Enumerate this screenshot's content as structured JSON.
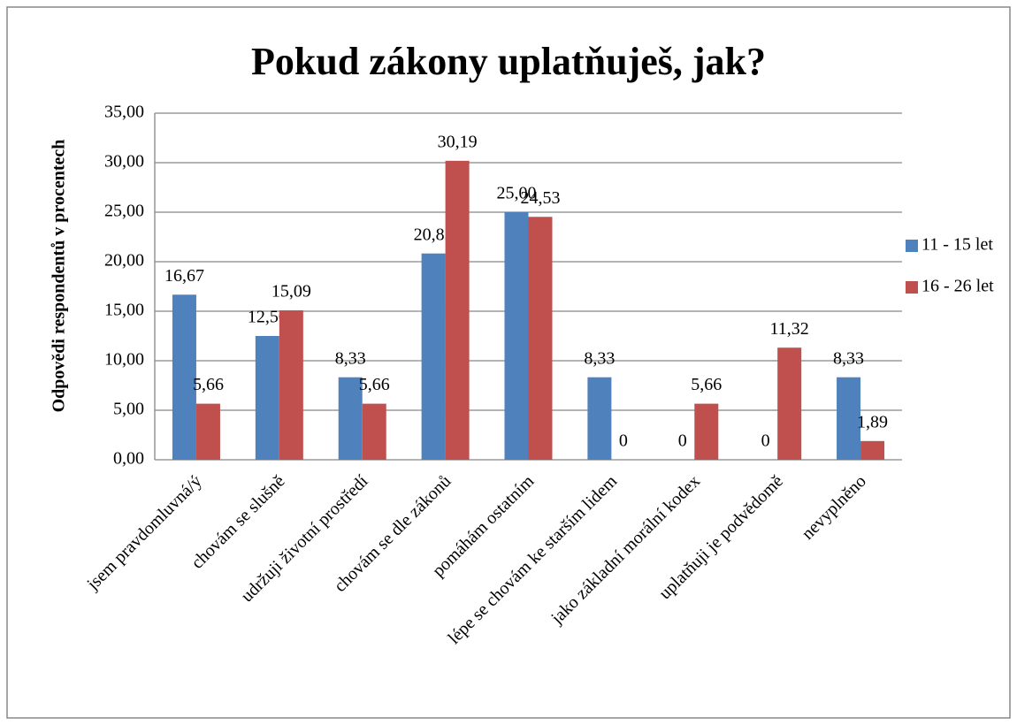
{
  "chart_data": {
    "type": "bar",
    "title": "Pokud zákony uplatňuješ, jak?",
    "y_label": "Odpovědi respondentů v procentech",
    "categories": [
      "jsem pravdomluvná/ý",
      "chovám se slušně",
      "udržuji životní prostředí",
      "chovám se dle zákonů",
      "pomáhám ostatním",
      "lépe se chovám ke starším lidem",
      "jako základní morální kodex",
      "uplatňuji je podvědomě",
      "nevyplněno"
    ],
    "series": [
      {
        "name": "11 - 15 let",
        "color": "#4f81bd",
        "values": [
          16.67,
          12.5,
          8.33,
          20.83,
          25.0,
          8.33,
          0,
          0,
          8.33
        ],
        "value_labels": [
          "16,67",
          "12,50",
          "8,33",
          "20,83",
          "25,00",
          "8,33",
          "0",
          "0",
          "8,33"
        ]
      },
      {
        "name": "16 - 26 let",
        "color": "#c0504d",
        "values": [
          5.66,
          15.09,
          5.66,
          30.19,
          24.53,
          0,
          5.66,
          11.32,
          1.89
        ],
        "value_labels": [
          "5,66",
          "15,09",
          "5,66",
          "30,19",
          "24,53",
          "0",
          "5,66",
          "11,32",
          "1,89"
        ]
      }
    ],
    "ylim": [
      0,
      35
    ],
    "yticks": [
      {
        "value": 0,
        "label": "0,00"
      },
      {
        "value": 5,
        "label": "5,00"
      },
      {
        "value": 10,
        "label": "10,00"
      },
      {
        "value": 15,
        "label": "15,00"
      },
      {
        "value": 20,
        "label": "20,00"
      },
      {
        "value": 25,
        "label": "25,00"
      },
      {
        "value": 30,
        "label": "30,00"
      },
      {
        "value": 35,
        "label": "35,00"
      }
    ],
    "grid": true,
    "legend": "right"
  }
}
